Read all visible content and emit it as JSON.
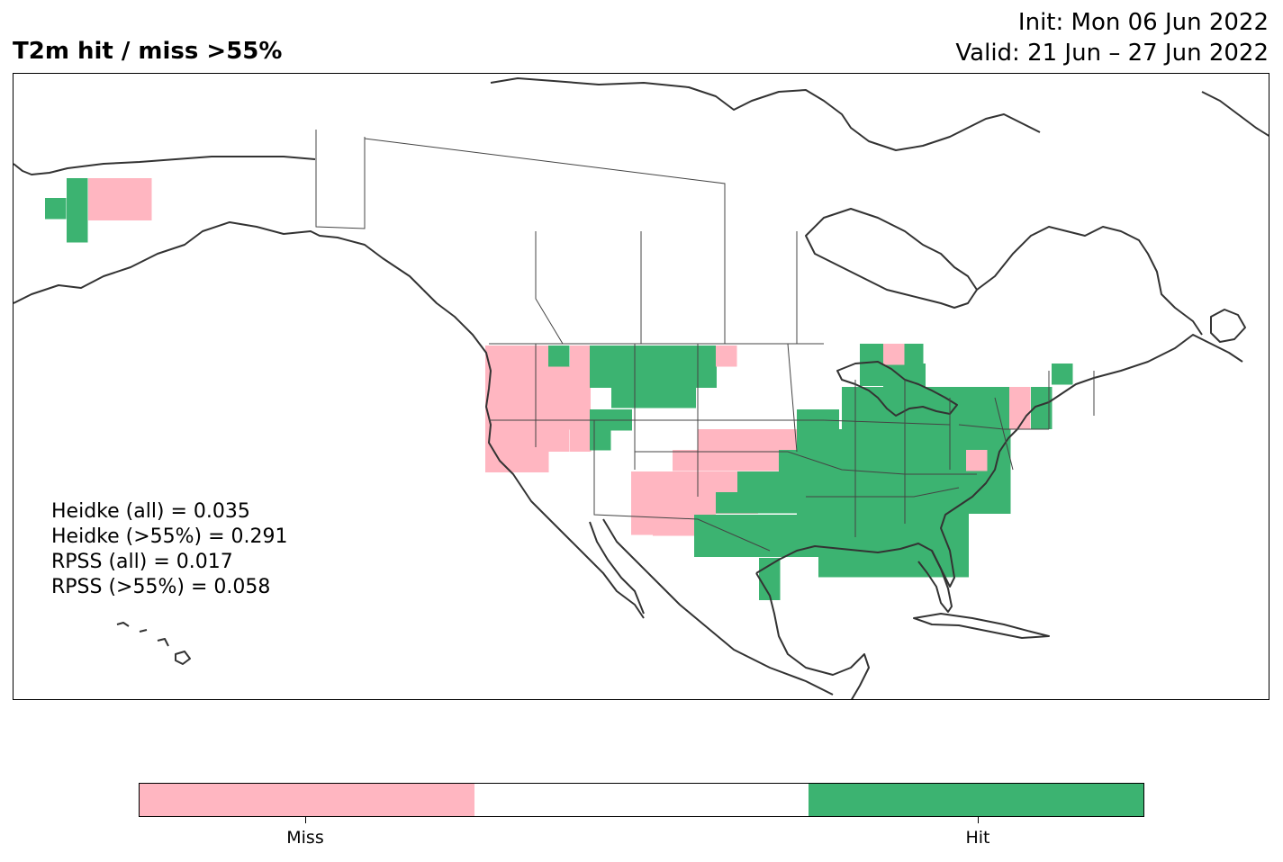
{
  "header": {
    "title": "T2m hit / miss  >55%",
    "init_line": "Init: Mon 06 Jun 2022",
    "valid_line": "Valid: 21 Jun – 27 Jun 2022"
  },
  "stats": [
    "Heidke (all) = 0.035",
    "Heidke (>55%) = 0.291",
    "RPSS (all) = 0.017",
    "RPSS (>55%) = 0.058"
  ],
  "colors": {
    "miss": "#ffb6c1",
    "neutral": "#ffffff",
    "hit": "#3cb371",
    "coast": "#333333"
  },
  "colorbar": {
    "segments": [
      {
        "label": "Miss",
        "color": "#ffb6c1"
      },
      {
        "label": "",
        "color": "#ffffff"
      },
      {
        "label": "Hit",
        "color": "#3cb371"
      }
    ]
  },
  "map": {
    "region": "North America",
    "categories": [
      "Miss",
      "Hit"
    ]
  }
}
